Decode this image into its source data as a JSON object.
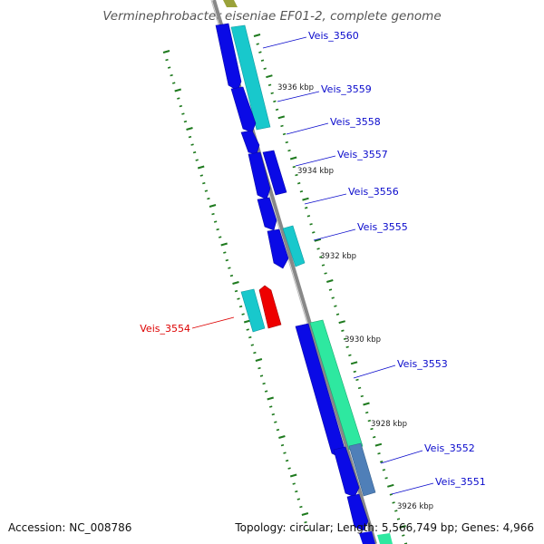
{
  "title": "Verminephrobacter eiseniae EF01-2, complete genome",
  "footer": {
    "accession": "Accession: NC_008786",
    "topology": "Topology: circular; Length: 5,566,749 bp; Genes: 4,966"
  },
  "colors": {
    "backbone": "#888888",
    "tick": "#1e7a1e",
    "cds_forward": "#0a0ae6",
    "cds_reverse_cyan": "#18c8cc",
    "cds_reverse_green": "#2ee8a0",
    "cds_reverse_steel": "#4f7fb8",
    "cds_highlight": "#ee0000",
    "label_blue": "#0a0acc",
    "label_red": "#dd0000"
  },
  "scale_labels": [
    "3936 kbp",
    "3934 kbp",
    "3932 kbp",
    "3930 kbp",
    "3928 kbp",
    "3926 kbp"
  ],
  "gene_labels": [
    {
      "name": "Veis_3560",
      "color": "blue"
    },
    {
      "name": "Veis_3559",
      "color": "blue"
    },
    {
      "name": "Veis_3558",
      "color": "blue"
    },
    {
      "name": "Veis_3557",
      "color": "blue"
    },
    {
      "name": "Veis_3556",
      "color": "blue"
    },
    {
      "name": "Veis_3555",
      "color": "blue"
    },
    {
      "name": "Veis_3554",
      "color": "red"
    },
    {
      "name": "Veis_3553",
      "color": "blue"
    },
    {
      "name": "Veis_3552",
      "color": "blue"
    },
    {
      "name": "Veis_3551",
      "color": "blue"
    }
  ]
}
